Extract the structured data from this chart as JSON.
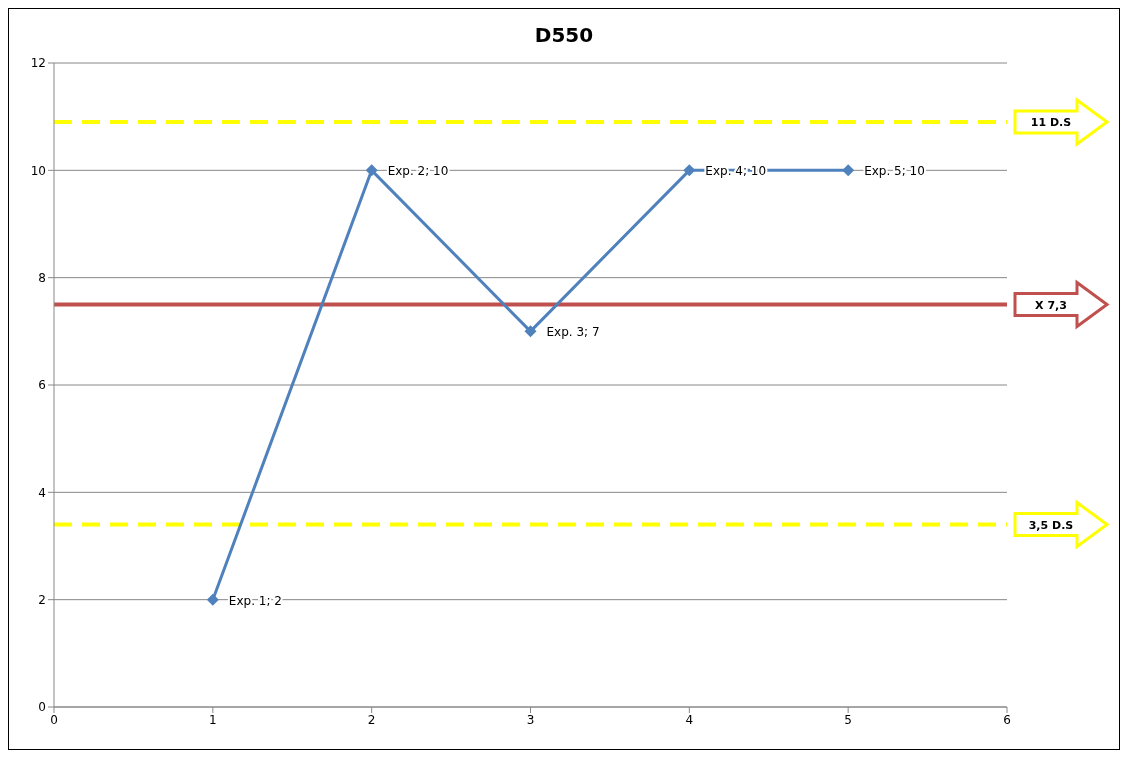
{
  "chart_data": {
    "type": "line",
    "title": "D550",
    "x": [
      1,
      2,
      3,
      4,
      5
    ],
    "series": [
      {
        "color": "#4f81bd",
        "values": [
          2,
          10,
          7,
          10,
          10
        ],
        "value_labels": [
          "Exp. 1; 2",
          "Exp. 2; 10",
          "Exp. 3; 7",
          "Exp. 4; 10",
          "Exp. 5; 10"
        ]
      }
    ],
    "xlim": [
      0,
      6
    ],
    "xticks": [
      0,
      1,
      2,
      3,
      4,
      5,
      6
    ],
    "ylim": [
      0,
      12
    ],
    "yticks": [
      0,
      2,
      4,
      6,
      8,
      10,
      12
    ],
    "grid": "y",
    "marker": "diamond",
    "line_style": "solid",
    "ref_lines": [
      {
        "axis": "y",
        "value": 10.9,
        "label": "11 D.S",
        "color": "#ffff00",
        "line_style": "dashed"
      },
      {
        "axis": "y",
        "value": 7.5,
        "label": "X 7,3",
        "color": "#c0504d",
        "line_style": "solid"
      },
      {
        "axis": "y",
        "value": 3.4,
        "label": "3,5 D.S",
        "color": "#ffff00",
        "line_style": "dashed"
      }
    ]
  }
}
